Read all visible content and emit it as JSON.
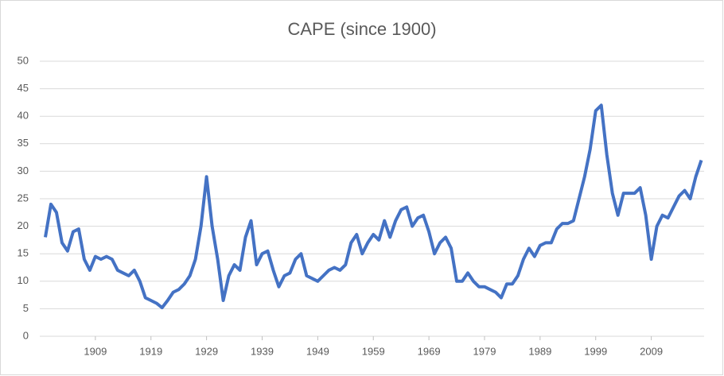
{
  "chart_data": {
    "type": "line",
    "title": "CAPE (since 1900)",
    "x": [
      1900,
      1901,
      1902,
      1903,
      1904,
      1905,
      1906,
      1907,
      1908,
      1909,
      1910,
      1911,
      1912,
      1913,
      1914,
      1915,
      1916,
      1917,
      1918,
      1919,
      1920,
      1921,
      1922,
      1923,
      1924,
      1925,
      1926,
      1927,
      1928,
      1929,
      1930,
      1931,
      1932,
      1933,
      1934,
      1935,
      1936,
      1937,
      1938,
      1939,
      1940,
      1941,
      1942,
      1943,
      1944,
      1945,
      1946,
      1947,
      1948,
      1949,
      1950,
      1951,
      1952,
      1953,
      1954,
      1955,
      1956,
      1957,
      1958,
      1959,
      1960,
      1961,
      1962,
      1963,
      1964,
      1965,
      1966,
      1967,
      1968,
      1969,
      1970,
      1971,
      1972,
      1973,
      1974,
      1975,
      1976,
      1977,
      1978,
      1979,
      1980,
      1981,
      1982,
      1983,
      1984,
      1985,
      1986,
      1987,
      1988,
      1989,
      1990,
      1991,
      1992,
      1993,
      1994,
      1995,
      1996,
      1997,
      1998,
      1999,
      2000,
      2001,
      2002,
      2003,
      2004,
      2005,
      2006,
      2007,
      2008,
      2009,
      2010,
      2011,
      2012,
      2013,
      2014,
      2015,
      2016,
      2017,
      2018
    ],
    "series": [
      {
        "color": "#4472c4",
        "values": [
          18,
          24,
          22.5,
          17,
          15.5,
          19,
          19.5,
          14,
          12,
          14.5,
          14,
          14.5,
          14,
          12,
          11.5,
          11,
          12,
          10,
          7,
          6.5,
          6,
          5.2,
          6.5,
          8,
          8.5,
          9.5,
          11,
          14,
          20,
          29,
          20,
          14,
          6.5,
          11,
          13,
          12,
          18,
          21,
          13,
          15,
          15.5,
          12,
          9,
          11,
          11.5,
          14,
          15,
          11,
          10.5,
          10,
          11,
          12,
          12.5,
          12,
          13,
          17,
          18.5,
          15,
          17,
          18.5,
          17.5,
          21,
          18,
          21,
          23,
          23.5,
          20,
          21.5,
          22,
          19,
          15,
          17,
          18,
          16,
          10,
          10,
          11.5,
          10,
          9,
          9,
          8.5,
          8,
          7,
          9.5,
          9.5,
          11,
          14,
          16,
          14.5,
          16.5,
          17,
          17,
          19.5,
          20.5,
          20.5,
          21,
          25,
          29,
          34,
          41,
          42,
          33,
          26,
          22,
          26,
          26,
          26,
          27,
          22,
          14,
          20,
          22,
          21.5,
          23.5,
          25.5,
          26.5,
          25,
          29,
          32
        ]
      }
    ],
    "xlim": [
      1899,
      2018.5
    ],
    "xticks": [
      1909,
      1919,
      1929,
      1939,
      1949,
      1959,
      1969,
      1979,
      1989,
      1999,
      2009
    ],
    "ylim": [
      0,
      50
    ],
    "yticks": [
      0,
      5,
      10,
      15,
      20,
      25,
      30,
      35,
      40,
      45,
      50
    ],
    "grid": true
  }
}
